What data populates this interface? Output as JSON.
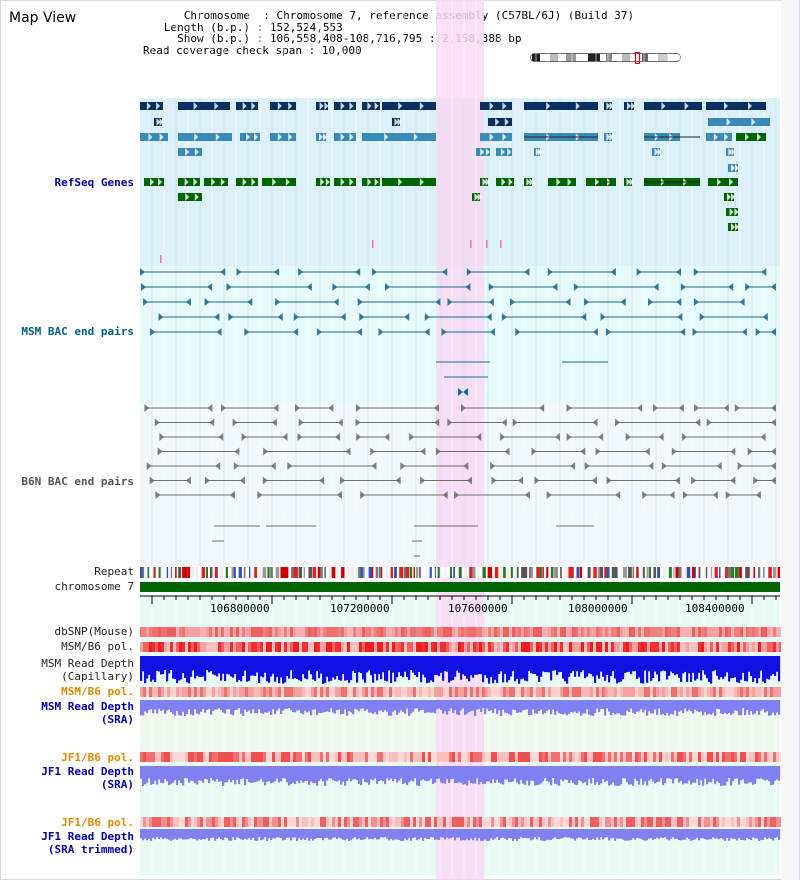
{
  "view": {
    "title": "Map View",
    "info": {
      "chromosome_key": "Chromosome",
      "chromosome_val": "Chromosome 7, reference assembly (C57BL/6J) (Build 37)",
      "length_key": "Length (b.p.)",
      "length_val": "152,524,553",
      "show_key": "Show (b.p.)",
      "show_val": "106,558,408-108,716,795 : 2,158,388 bp",
      "coverage_key": "Read coverage check span",
      "coverage_val": "10,000"
    }
  },
  "tracks": {
    "refseq": "RefSeq Genes",
    "msm_bac": "MSM BAC end pairs",
    "b6n_bac": "B6N BAC end pairs",
    "repeat": "Repeat",
    "chromosome": "chromosome 7",
    "dbsnp": "dbSNP(Mouse)",
    "msm_b6_pol_1": "MSM/B6 pol.",
    "msm_read_depth_cap_1": "MSM Read Depth",
    "msm_read_depth_cap_2": "(Capillary)",
    "msm_b6_pol_2": "MSM/B6 pol.",
    "msm_read_depth_sra_1": "MSM Read Depth",
    "msm_read_depth_sra_2": "(SRA)",
    "jf1_b6_pol_1": "JF1/B6 pol.",
    "jf1_read_depth_sra_1": "JF1 Read Depth",
    "jf1_read_depth_sra_2": "(SRA)",
    "jf1_b6_pol_2": "JF1/B6 pol.",
    "jf1_read_depth_trim_1": "JF1 Read Depth",
    "jf1_read_depth_trim_2": "(SRA trimmed)"
  },
  "axis": {
    "ticks": [
      "106800000",
      "107200000",
      "107600000",
      "108000000",
      "108400000"
    ]
  },
  "colors": {
    "refseq_bg": "#dcf0fa",
    "msm_bg": "#e6fafa",
    "b6n_bg": "#f2f8fc",
    "highlight": "#f8d8f4",
    "gene_dark": "#0a3060",
    "gene_mid": "#3a8ab8",
    "gene_green": "#006400",
    "bac_teal": "#1a6a90",
    "bac_gray": "#707070",
    "depth_blue": "#1010e0",
    "depth_light": "#8080f0"
  }
}
